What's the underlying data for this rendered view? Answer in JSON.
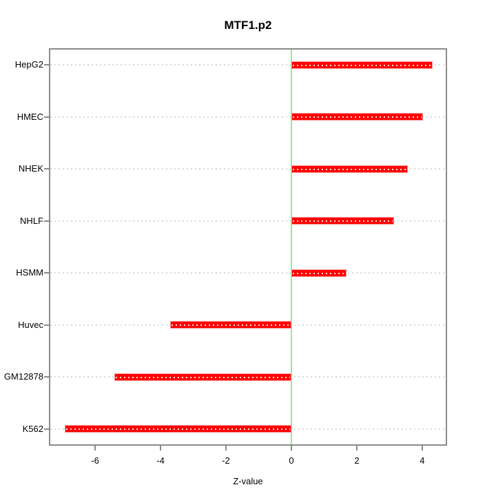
{
  "chart_data": {
    "type": "bar",
    "orientation": "horizontal",
    "title": "MTF1.p2",
    "xlabel": "Z-value",
    "categories": [
      "HepG2",
      "HMEC",
      "NHEK",
      "NHLF",
      "HSMM",
      "Huvec",
      "GM12878",
      "K562"
    ],
    "values": [
      4.32,
      4.02,
      3.56,
      3.14,
      1.68,
      -3.71,
      -5.41,
      -6.93
    ],
    "xlim": [
      -7.37,
      4.76
    ],
    "xticks": [
      -6,
      -4,
      -2,
      0,
      2,
      4
    ],
    "xtick_labels": [
      "-6",
      "-4",
      "-2",
      "0",
      "2",
      "4"
    ],
    "grid": "dotted horizontal line per category, full plot width",
    "zero_reference_line": 0,
    "legend": "none",
    "colors": {
      "bar_fill": "#ff0000",
      "bar_border": "#ff9090",
      "bar_inner_dots": "#ffffff",
      "zero_line": "#90ee90",
      "axis_box": "#8a8a8a",
      "gridline": "#d9d9d9",
      "text": "#000000",
      "background": "#ffffff"
    }
  }
}
